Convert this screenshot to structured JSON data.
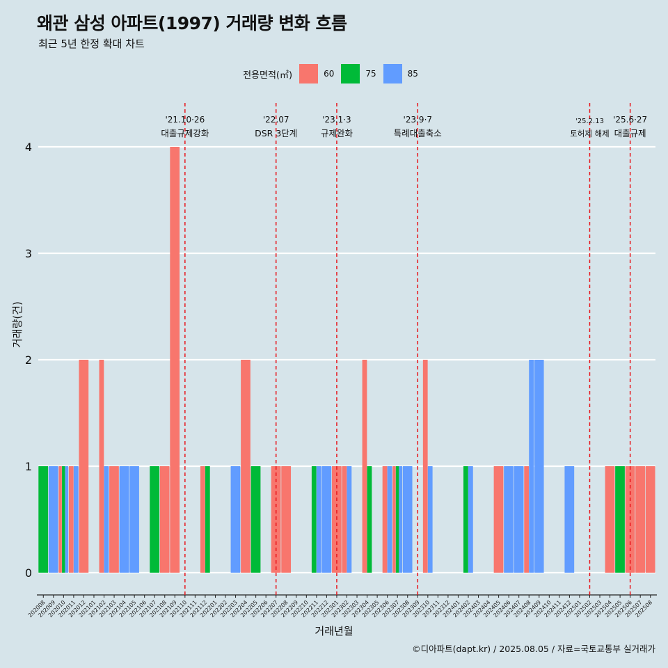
{
  "title": "왜관 삼성 아파트(1997) 거래량 변화 흐름",
  "subtitle": "최근 5년 한정 확대 차트",
  "caption": "©디아파트(dapt.kr) / 2025.08.05 / 자료=국토교통부 실거래가",
  "legend": {
    "title": "전용면적(㎡)",
    "items": [
      {
        "label": "60",
        "color": "#f8766d"
      },
      {
        "label": "75",
        "color": "#00ba38"
      },
      {
        "label": "85",
        "color": "#619cff"
      }
    ]
  },
  "chart_data": {
    "type": "bar",
    "position": "dodge",
    "xlabel": "거래년월",
    "ylabel": "거래량(건)",
    "ylim": [
      0,
      4
    ],
    "yticks": [
      "0",
      "1",
      "2",
      "3",
      "4"
    ],
    "categories": [
      "202008",
      "202009",
      "202010",
      "202011",
      "202012",
      "202101",
      "202102",
      "202103",
      "202104",
      "202105",
      "202106",
      "202107",
      "202108",
      "202109",
      "202110",
      "202111",
      "202112",
      "202201",
      "202202",
      "202203",
      "202204",
      "202205",
      "202206",
      "202207",
      "202208",
      "202209",
      "202210",
      "202211",
      "202212",
      "202301",
      "202302",
      "202303",
      "202304",
      "202305",
      "202306",
      "202307",
      "202308",
      "202309",
      "202310",
      "202311",
      "202312",
      "202401",
      "202402",
      "202403",
      "202404",
      "202405",
      "202406",
      "202407",
      "202408",
      "202409",
      "202410",
      "202411",
      "202412",
      "202501",
      "202502",
      "202503",
      "202504",
      "202505",
      "202506",
      "202507",
      "202508"
    ],
    "bars": [
      {
        "month": "202008",
        "area": "75",
        "value": 1
      },
      {
        "month": "202009",
        "area": "85",
        "value": 1
      },
      {
        "month": "202010",
        "area": "60",
        "value": 1
      },
      {
        "month": "202010",
        "area": "75",
        "value": 1
      },
      {
        "month": "202010",
        "area": "85",
        "value": 1
      },
      {
        "month": "202011",
        "area": "60",
        "value": 1
      },
      {
        "month": "202011",
        "area": "85",
        "value": 1
      },
      {
        "month": "202012",
        "area": "60",
        "value": 2
      },
      {
        "month": "202102",
        "area": "60",
        "value": 2
      },
      {
        "month": "202102",
        "area": "85",
        "value": 1
      },
      {
        "month": "202103",
        "area": "60",
        "value": 1
      },
      {
        "month": "202104",
        "area": "85",
        "value": 1
      },
      {
        "month": "202105",
        "area": "85",
        "value": 1
      },
      {
        "month": "202107",
        "area": "75",
        "value": 1
      },
      {
        "month": "202108",
        "area": "60",
        "value": 1
      },
      {
        "month": "202109",
        "area": "60",
        "value": 4
      },
      {
        "month": "202112",
        "area": "60",
        "value": 1
      },
      {
        "month": "202112",
        "area": "75",
        "value": 1
      },
      {
        "month": "202203",
        "area": "85",
        "value": 1
      },
      {
        "month": "202204",
        "area": "60",
        "value": 2
      },
      {
        "month": "202205",
        "area": "75",
        "value": 1
      },
      {
        "month": "202207",
        "area": "60",
        "value": 1
      },
      {
        "month": "202208",
        "area": "60",
        "value": 1
      },
      {
        "month": "202211",
        "area": "75",
        "value": 1
      },
      {
        "month": "202211",
        "area": "85",
        "value": 1
      },
      {
        "month": "202212",
        "area": "85",
        "value": 1
      },
      {
        "month": "202301",
        "area": "60",
        "value": 1
      },
      {
        "month": "202302",
        "area": "60",
        "value": 1
      },
      {
        "month": "202302",
        "area": "85",
        "value": 1
      },
      {
        "month": "202304",
        "area": "60",
        "value": 2
      },
      {
        "month": "202304",
        "area": "75",
        "value": 1
      },
      {
        "month": "202306",
        "area": "60",
        "value": 1
      },
      {
        "month": "202306",
        "area": "85",
        "value": 1
      },
      {
        "month": "202307",
        "area": "60",
        "value": 1
      },
      {
        "month": "202307",
        "area": "75",
        "value": 1
      },
      {
        "month": "202307",
        "area": "85",
        "value": 1
      },
      {
        "month": "202308",
        "area": "85",
        "value": 1
      },
      {
        "month": "202310",
        "area": "60",
        "value": 2
      },
      {
        "month": "202310",
        "area": "85",
        "value": 1
      },
      {
        "month": "202402",
        "area": "75",
        "value": 1
      },
      {
        "month": "202402",
        "area": "85",
        "value": 1
      },
      {
        "month": "202405",
        "area": "60",
        "value": 1
      },
      {
        "month": "202406",
        "area": "85",
        "value": 1
      },
      {
        "month": "202407",
        "area": "85",
        "value": 1
      },
      {
        "month": "202408",
        "area": "60",
        "value": 1
      },
      {
        "month": "202408",
        "area": "85",
        "value": 2
      },
      {
        "month": "202409",
        "area": "85",
        "value": 2
      },
      {
        "month": "202412",
        "area": "85",
        "value": 1
      },
      {
        "month": "202504",
        "area": "60",
        "value": 1
      },
      {
        "month": "202505",
        "area": "75",
        "value": 1
      },
      {
        "month": "202506",
        "area": "60",
        "value": 1
      },
      {
        "month": "202507",
        "area": "60",
        "value": 1
      },
      {
        "month": "202508",
        "area": "60",
        "value": 1
      }
    ],
    "events": [
      {
        "month": "202110",
        "date": "'21.10·26",
        "label": "대출규제강화"
      },
      {
        "month": "202207",
        "date": "'22.07",
        "label": "DSR 3단계"
      },
      {
        "month": "202301",
        "date": "'23.1·3",
        "label": "규제완화"
      },
      {
        "month": "202309",
        "date": "'23.9·7",
        "label": "특례대출축소"
      },
      {
        "month": "202502",
        "date": "'25.2.13",
        "label": "토허제 해제"
      },
      {
        "month": "202506",
        "date": "'25.6·27",
        "label": "대출규제"
      }
    ]
  }
}
